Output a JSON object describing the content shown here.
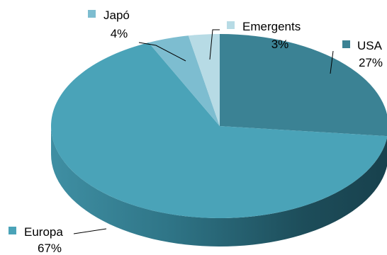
{
  "chart_data": {
    "type": "pie",
    "style": "3d-exploded-none",
    "slices": [
      {
        "name": "USA",
        "value": 27,
        "label": "27%",
        "color": "#3b8294"
      },
      {
        "name": "Europa",
        "value": 67,
        "label": "67%",
        "color": "#4aa3b8"
      },
      {
        "name": "Japó",
        "value": 4,
        "label": "4%",
        "color": "#7dbdd0"
      },
      {
        "name": "Emergents",
        "value": 3,
        "label": "3%",
        "color": "#b7dbe5"
      }
    ],
    "legend": "inline-labels"
  }
}
